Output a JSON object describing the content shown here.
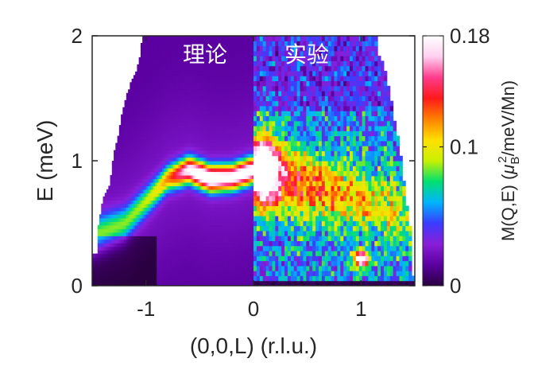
{
  "chart_data": {
    "type": "heatmap",
    "xlabel": "(0,0,L) (r.l.u.)",
    "ylabel": "E (meV)",
    "xlim": [
      -1.5,
      1.5
    ],
    "ylim": [
      0,
      2
    ],
    "x_ticks": [
      -1,
      0,
      1
    ],
    "x_tick_labels": [
      "-1",
      "0",
      "1"
    ],
    "y_ticks": [
      0,
      1,
      2
    ],
    "y_tick_labels": [
      "0",
      "1",
      "2"
    ],
    "panel_labels": {
      "theory": "理论",
      "experiment": "实验"
    },
    "colorbar": {
      "label_prefix": "M(Q,E) (",
      "mu": "μ",
      "sub": "B",
      "sup": "2",
      "label_suffix": "/meV/Mn)",
      "min": 0,
      "max": 0.18,
      "ticks": [
        0,
        0.1,
        0.18
      ],
      "tick_labels": [
        "0",
        "0.1",
        "0.18"
      ],
      "colormap": [
        "#2a0040",
        "#5a00a0",
        "#8a1ed8",
        "#3a3cff",
        "#00b4ff",
        "#00e070",
        "#c8f000",
        "#ffe000",
        "#ff8000",
        "#ff1a1a",
        "#ff3c8c",
        "#ffd0f0",
        "#ffffff"
      ]
    },
    "theory_boundary": [
      [
        -1.5,
        0.25
      ],
      [
        -1.46,
        0.25
      ],
      [
        -1.44,
        0.5
      ],
      [
        -1.4,
        0.7
      ],
      [
        -1.34,
        0.8
      ],
      [
        -1.3,
        1.05
      ],
      [
        -1.26,
        1.2
      ],
      [
        -1.22,
        1.4
      ],
      [
        -1.16,
        1.58
      ],
      [
        -1.1,
        1.7
      ],
      [
        -1.06,
        1.82
      ],
      [
        -1.04,
        1.96
      ],
      [
        -1.04,
        2
      ],
      [
        0,
        2
      ]
    ],
    "experiment_boundary_right": [
      [
        1.0,
        2
      ],
      [
        1.14,
        2
      ],
      [
        1.14,
        1.88
      ],
      [
        1.2,
        1.78
      ],
      [
        1.26,
        1.6
      ],
      [
        1.3,
        1.4
      ],
      [
        1.34,
        1.2
      ],
      [
        1.38,
        1.0
      ],
      [
        1.42,
        0.7
      ],
      [
        1.46,
        0.45
      ],
      [
        1.46,
        0.1
      ],
      [
        1.5,
        0.1
      ]
    ],
    "theory_features": {
      "dispersion_ridge": [
        [
          -1.5,
          0.4
        ],
        [
          -1.2,
          0.5
        ],
        [
          -0.95,
          0.72
        ],
        [
          -0.8,
          0.86
        ],
        [
          -0.6,
          0.93
        ],
        [
          -0.4,
          0.86
        ],
        [
          -0.2,
          0.87
        ],
        [
          0,
          0.93
        ]
      ],
      "peak_max": {
        "x": -0.5,
        "E": 0.92,
        "value": 0.18
      },
      "baseline_value": 0.025
    },
    "experiment_features": {
      "peak_max": {
        "x": 0.1,
        "E": 0.92,
        "value": 0.18
      },
      "elastic_spot": {
        "x": 1.0,
        "E": 0.22,
        "value": 0.18
      },
      "background_value": 0.06
    }
  }
}
